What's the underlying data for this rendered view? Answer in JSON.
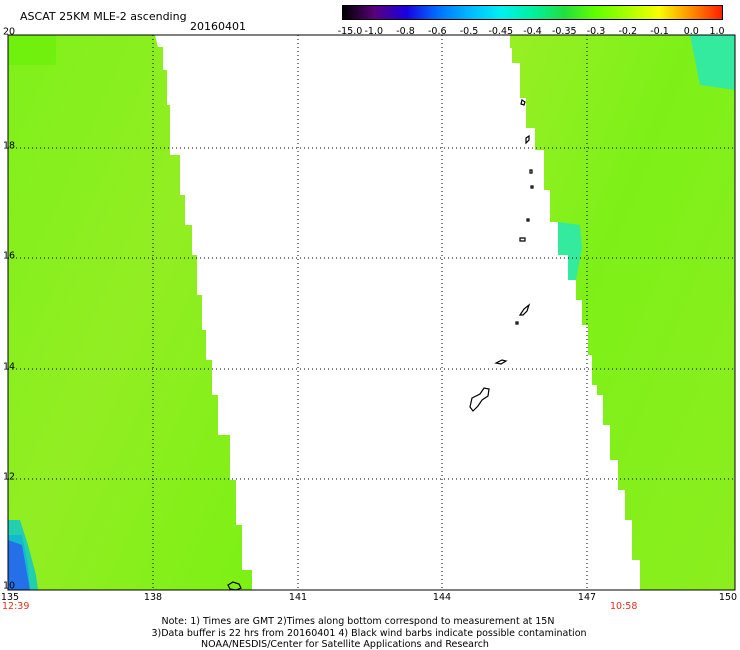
{
  "header": {
    "title": "ASCAT 25KM MLE-2 ascending",
    "date": "20160401"
  },
  "colorbar": {
    "labels": [
      "-15.0",
      "-1.0",
      "-0.8",
      "-0.6",
      "-0.5",
      "-0.45",
      "-0.4",
      "-0.35",
      "-0.3",
      "-0.2",
      "-0.1",
      "0.0",
      "1.0"
    ],
    "colors": [
      "#000000",
      "#5a007a",
      "#1a00e0",
      "#0070ff",
      "#00b8ff",
      "#00f0f0",
      "#00f0a0",
      "#20e040",
      "#60ff00",
      "#a8ff00",
      "#f8ff00",
      "#ff9000",
      "#ff2000"
    ]
  },
  "map": {
    "lat_labels": [
      "20",
      "18",
      "16",
      "14",
      "12",
      "10"
    ],
    "lon_labels": [
      "135",
      "138",
      "141",
      "144",
      "147",
      "150"
    ],
    "swath_color": "#8aef1e",
    "swath_color_alt": "#70f010",
    "swath_cyan": "#20e8c0",
    "swath_blue": "#1a60ff"
  },
  "times": {
    "left": "12:39",
    "right": "10:58"
  },
  "notes": {
    "line1": "Note: 1) Times are GMT 2)Times along bottom correspond to measurement at 15N",
    "line2": "3)Data buffer is 22 hrs from 20160401 4) Black wind barbs indicate possible contamination",
    "line3": "NOAA/NESDIS/Center for Satellite Applications and Research"
  }
}
